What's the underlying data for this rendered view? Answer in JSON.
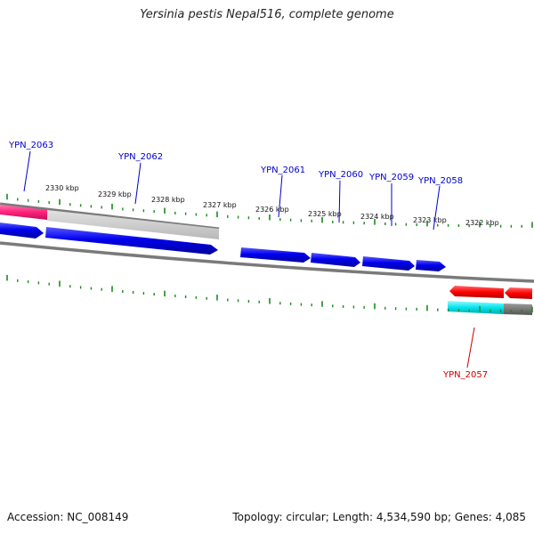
{
  "title": "Yersinia pestis Nepal516, complete genome",
  "footer": {
    "accession": "Accession: NC_008149",
    "summary": "Topology: circular; Length: 4,534,590 bp; Genes: 4,085"
  },
  "scale_labels": [
    "2330 kbp",
    "2329 kbp",
    "2328 kbp",
    "2327 kbp",
    "2326 kbp",
    "2325 kbp",
    "2324 kbp",
    "2323 kbp",
    "2322 kbp"
  ],
  "forward_genes": [
    "YPN_2063",
    "YPN_2062",
    "YPN_2061",
    "YPN_2060",
    "YPN_2059",
    "YPN_2058"
  ],
  "reverse_genes": [
    "YPN_2057"
  ],
  "colors": {
    "forward_label": "#0000cc",
    "reverse_label": "#cc0000",
    "cds": "#0000ee",
    "rna": "#ff2a80",
    "reverse_cds": "#ff0000",
    "cyan_feature": "#00e5ee",
    "backbone": "#777777",
    "tick": "#1a8a1a"
  }
}
